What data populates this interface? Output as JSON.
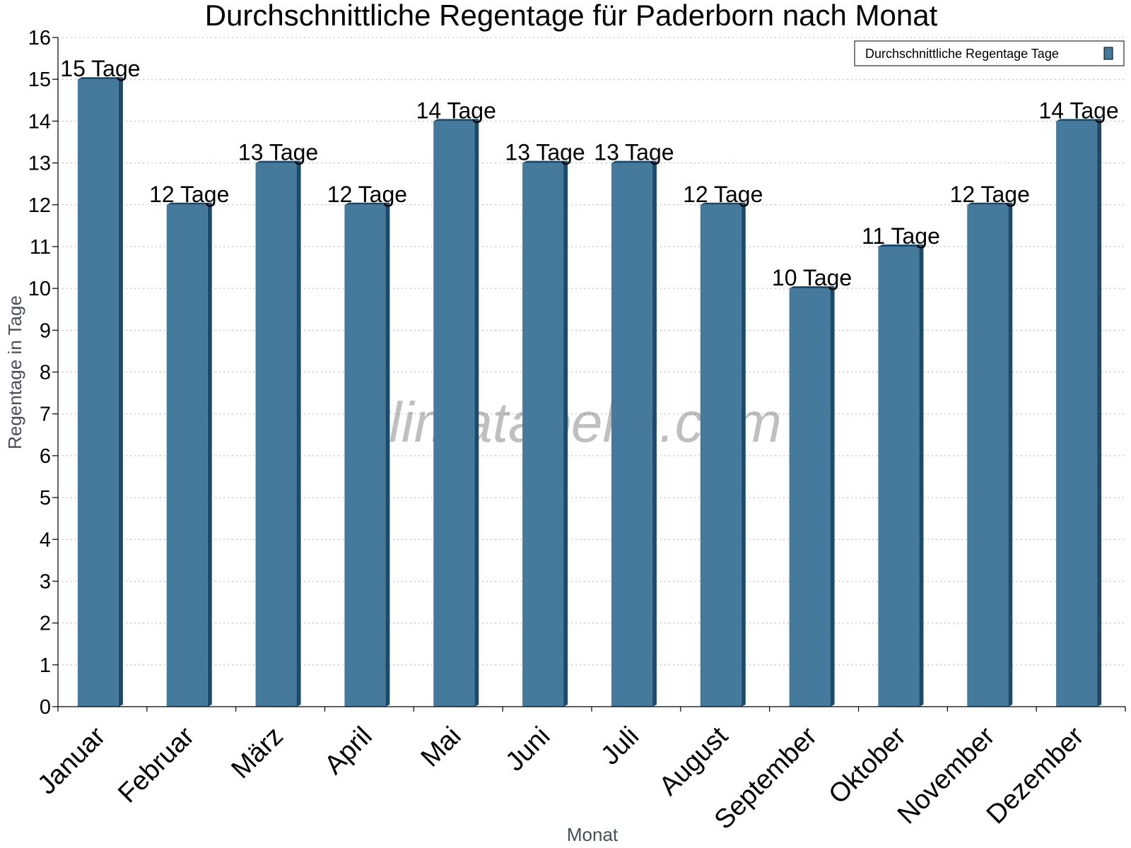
{
  "chart_data": {
    "type": "bar",
    "title": "Durchschnittliche Regentage für Paderborn nach Monat",
    "xlabel": "Monat",
    "ylabel": "Regentage in Tage",
    "ylim": [
      0,
      16
    ],
    "yticks": [
      "0",
      "1",
      "2",
      "3",
      "4",
      "5",
      "6",
      "7",
      "8",
      "9",
      "10",
      "11",
      "12",
      "13",
      "14",
      "15",
      "16"
    ],
    "grid": true,
    "legend_position": "top-right",
    "categories": [
      "Januar",
      "Februar",
      "März",
      "April",
      "Mai",
      "Juni",
      "Juli",
      "August",
      "September",
      "Oktober",
      "November",
      "Dezember"
    ],
    "series": [
      {
        "name": "Durchschnittliche Regentage Tage",
        "values": [
          15,
          12,
          13,
          12,
          14,
          13,
          13,
          12,
          10,
          11,
          12,
          14
        ],
        "labels": [
          "15 Tage",
          "12 Tage",
          "13 Tage",
          "12 Tage",
          "14 Tage",
          "13 Tage",
          "13 Tage",
          "12 Tage",
          "10 Tage",
          "11 Tage",
          "12 Tage",
          "14 Tage"
        ],
        "color": "#457a9c",
        "side_color": "#1b4a6b"
      }
    ]
  },
  "watermark": "klimatabelle.com"
}
